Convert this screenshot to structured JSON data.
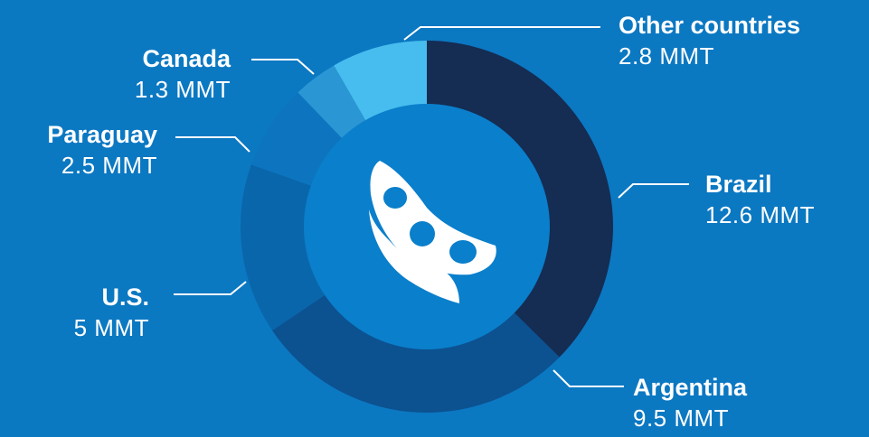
{
  "colors": {
    "background": "#0b78c2",
    "center": "#0a7fcb",
    "connector": "#ffffff",
    "icon": "#ffffff"
  },
  "icon": "soybean-pod-icon",
  "chart_data": {
    "type": "pie",
    "variant": "donut",
    "unit": "MMT",
    "title": "",
    "legend": "none",
    "slices": [
      {
        "name": "Brazil",
        "value": 12.6,
        "label": "12.6 MMT",
        "color": "#152c53"
      },
      {
        "name": "Argentina",
        "value": 9.5,
        "label": "9.5 MMT",
        "color": "#0c5190"
      },
      {
        "name": "U.S.",
        "value": 5,
        "label": "5 MMT",
        "color": "#0a66ab"
      },
      {
        "name": "Paraguay",
        "value": 2.5,
        "label": "2.5 MMT",
        "color": "#0d75bf"
      },
      {
        "name": "Canada",
        "value": 1.3,
        "label": "1.3 MMT",
        "color": "#2a96d3"
      },
      {
        "name": "Other countries",
        "value": 2.8,
        "label": "2.8 MMT",
        "color": "#47bdef"
      }
    ]
  }
}
